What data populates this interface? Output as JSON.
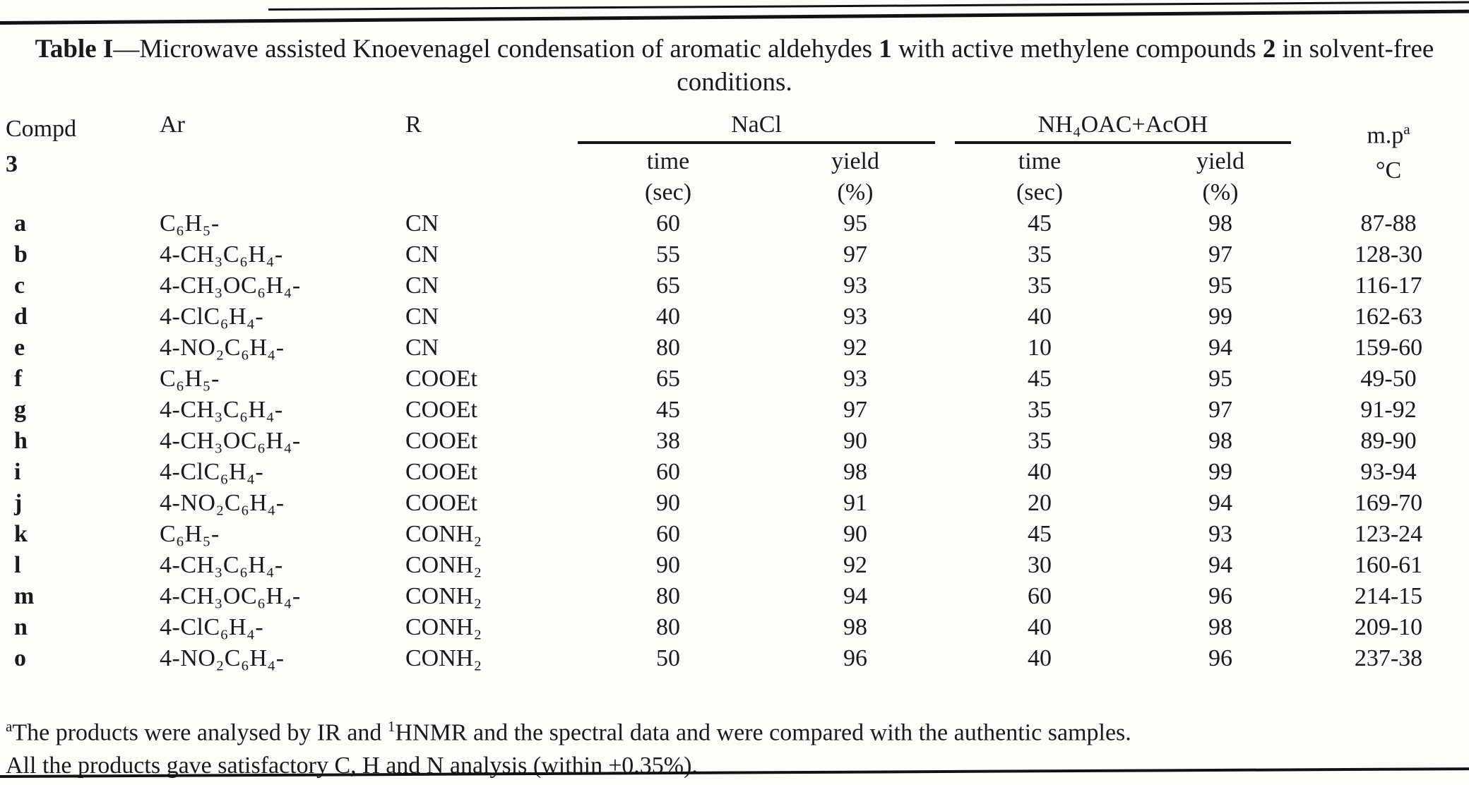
{
  "title": {
    "label_bold": "Table I",
    "dash": "—",
    "text_a": "Microwave assisted Knoevenagel condensation of aromatic aldehydes ",
    "num1": "1",
    "text_b": " with active methylene compounds ",
    "num2": "2",
    "text_c": " in solvent-free",
    "line2": "conditions."
  },
  "header": {
    "compd_line1": "Compd",
    "compd_line2": "3",
    "ar": "Ar",
    "r": "R",
    "group1": "NaCl",
    "group2": "NH₄OAC+AcOH",
    "mp_line1": "m.p",
    "mp_sup": "a",
    "mp_line2": "°C",
    "sub_time": "time",
    "sub_time_unit": "(sec)",
    "sub_yield": "yield",
    "sub_yield_unit": "(%)"
  },
  "rows": [
    {
      "compd": "a",
      "ar": "C₆H₅-",
      "r": "CN",
      "t1": "60",
      "y1": "95",
      "t2": "45",
      "y2": "98",
      "mp": "87-88"
    },
    {
      "compd": "b",
      "ar": "4-CH₃C₆H₄-",
      "r": "CN",
      "t1": "55",
      "y1": "97",
      "t2": "35",
      "y2": "97",
      "mp": "128-30"
    },
    {
      "compd": "c",
      "ar": "4-CH₃OC₆H₄-",
      "r": "CN",
      "t1": "65",
      "y1": "93",
      "t2": "35",
      "y2": "95",
      "mp": "116-17"
    },
    {
      "compd": "d",
      "ar": "4-ClC₆H₄-",
      "r": "CN",
      "t1": "40",
      "y1": "93",
      "t2": "40",
      "y2": "99",
      "mp": "162-63"
    },
    {
      "compd": "e",
      "ar": "4-NO₂C₆H₄-",
      "r": "CN",
      "t1": "80",
      "y1": "92",
      "t2": "10",
      "y2": "94",
      "mp": "159-60"
    },
    {
      "compd": "f",
      "ar": "C₆H₅-",
      "r": "COOEt",
      "t1": "65",
      "y1": "93",
      "t2": "45",
      "y2": "95",
      "mp": "49-50"
    },
    {
      "compd": "g",
      "ar": "4-CH₃C₆H₄-",
      "r": "COOEt",
      "t1": "45",
      "y1": "97",
      "t2": "35",
      "y2": "97",
      "mp": "91-92"
    },
    {
      "compd": "h",
      "ar": "4-CH₃OC₆H₄-",
      "r": "COOEt",
      "t1": "38",
      "y1": "90",
      "t2": "35",
      "y2": "98",
      "mp": "89-90"
    },
    {
      "compd": "i",
      "ar": "4-ClC₆H₄-",
      "r": "COOEt",
      "t1": "60",
      "y1": "98",
      "t2": "40",
      "y2": "99",
      "mp": "93-94"
    },
    {
      "compd": "j",
      "ar": "4-NO₂C₆H₄-",
      "r": "COOEt",
      "t1": "90",
      "y1": "91",
      "t2": "20",
      "y2": "94",
      "mp": "169-70"
    },
    {
      "compd": "k",
      "ar": "C₆H₅-",
      "r": "CONH₂",
      "t1": "60",
      "y1": "90",
      "t2": "45",
      "y2": "93",
      "mp": "123-24"
    },
    {
      "compd": "l",
      "ar": "4-CH₃C₆H₄-",
      "r": "CONH₂",
      "t1": "90",
      "y1": "92",
      "t2": "30",
      "y2": "94",
      "mp": "160-61"
    },
    {
      "compd": "m",
      "ar": "4-CH₃OC₆H₄-",
      "r": "CONH₂",
      "t1": "80",
      "y1": "94",
      "t2": "60",
      "y2": "96",
      "mp": "214-15"
    },
    {
      "compd": "n",
      "ar": "4-ClC₆H₄-",
      "r": "CONH₂",
      "t1": "80",
      "y1": "98",
      "t2": "40",
      "y2": "98",
      "mp": "209-10"
    },
    {
      "compd": "o",
      "ar": "4-NO₂C₆H₄-",
      "r": "CONH₂",
      "t1": "50",
      "y1": "96",
      "t2": "40",
      "y2": "96",
      "mp": "237-38"
    }
  ],
  "footnotes": {
    "fn1_sup": "a",
    "fn1_text_a": "The products were analysed by IR and ",
    "fn1_sup2": "1",
    "fn1_text_b": "HNMR and the spectral data and were compared with the authentic samples.",
    "fn2": "All the products gave satisfactory C, H and N analysis (within ±0.35%)."
  }
}
